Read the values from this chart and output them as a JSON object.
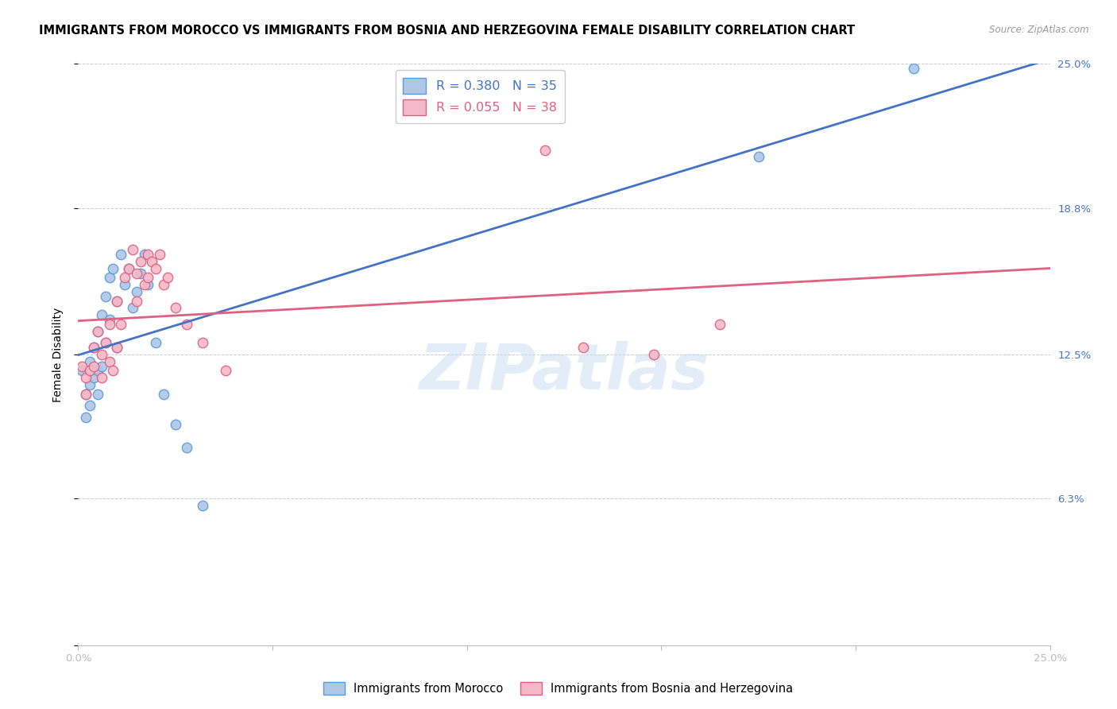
{
  "title": "IMMIGRANTS FROM MOROCCO VS IMMIGRANTS FROM BOSNIA AND HERZEGOVINA FEMALE DISABILITY CORRELATION CHART",
  "source": "Source: ZipAtlas.com",
  "ylabel": "Female Disability",
  "x_min": 0.0,
  "x_max": 0.25,
  "y_min": 0.0,
  "y_max": 0.25,
  "x_ticks": [
    0.0,
    0.05,
    0.1,
    0.15,
    0.2,
    0.25
  ],
  "x_tick_labels": [
    "0.0%",
    "",
    "",
    "",
    "",
    "25.0%"
  ],
  "y_ticks": [
    0.0,
    0.063,
    0.125,
    0.188,
    0.25
  ],
  "right_tick_labels": [
    "",
    "6.3%",
    "12.5%",
    "18.8%",
    "25.0%"
  ],
  "morocco_x": [
    0.001,
    0.002,
    0.002,
    0.003,
    0.003,
    0.003,
    0.004,
    0.004,
    0.005,
    0.005,
    0.005,
    0.006,
    0.006,
    0.007,
    0.007,
    0.008,
    0.008,
    0.009,
    0.01,
    0.01,
    0.011,
    0.012,
    0.013,
    0.014,
    0.015,
    0.016,
    0.017,
    0.018,
    0.02,
    0.022,
    0.025,
    0.028,
    0.032,
    0.175,
    0.215
  ],
  "morocco_y": [
    0.118,
    0.108,
    0.098,
    0.122,
    0.112,
    0.103,
    0.128,
    0.115,
    0.135,
    0.118,
    0.108,
    0.142,
    0.12,
    0.15,
    0.13,
    0.158,
    0.14,
    0.162,
    0.148,
    0.128,
    0.168,
    0.155,
    0.162,
    0.145,
    0.152,
    0.16,
    0.168,
    0.155,
    0.13,
    0.108,
    0.095,
    0.085,
    0.06,
    0.21,
    0.248
  ],
  "bosnia_x": [
    0.001,
    0.002,
    0.002,
    0.003,
    0.004,
    0.004,
    0.005,
    0.006,
    0.006,
    0.007,
    0.008,
    0.008,
    0.009,
    0.01,
    0.01,
    0.011,
    0.012,
    0.013,
    0.014,
    0.015,
    0.015,
    0.016,
    0.017,
    0.018,
    0.018,
    0.019,
    0.02,
    0.021,
    0.022,
    0.023,
    0.025,
    0.028,
    0.032,
    0.038,
    0.12,
    0.13,
    0.148,
    0.165
  ],
  "bosnia_y": [
    0.12,
    0.115,
    0.108,
    0.118,
    0.128,
    0.12,
    0.135,
    0.125,
    0.115,
    0.13,
    0.138,
    0.122,
    0.118,
    0.148,
    0.128,
    0.138,
    0.158,
    0.162,
    0.17,
    0.16,
    0.148,
    0.165,
    0.155,
    0.168,
    0.158,
    0.165,
    0.162,
    0.168,
    0.155,
    0.158,
    0.145,
    0.138,
    0.13,
    0.118,
    0.213,
    0.128,
    0.125,
    0.138
  ],
  "morocco_color": "#aec6e8",
  "morocco_edge_color": "#5b9bd5",
  "bosnia_color": "#f4b8c8",
  "bosnia_edge_color": "#e06080",
  "blue_line_color": "#4472c4",
  "pink_line_color": "#e06080",
  "watermark_text": "ZIPatlas",
  "background_color": "#ffffff",
  "grid_color": "#cccccc",
  "title_fontsize": 10.5,
  "source_fontsize": 8.5,
  "axis_label_fontsize": 10,
  "tick_fontsize": 9.5,
  "marker_size": 80,
  "line_width": 2.0,
  "legend_r1": "0.380",
  "legend_n1": "35",
  "legend_r2": "0.055",
  "legend_n2": "38",
  "legend_label1": "Immigrants from Morocco",
  "legend_label2": "Immigrants from Bosnia and Herzegovina"
}
